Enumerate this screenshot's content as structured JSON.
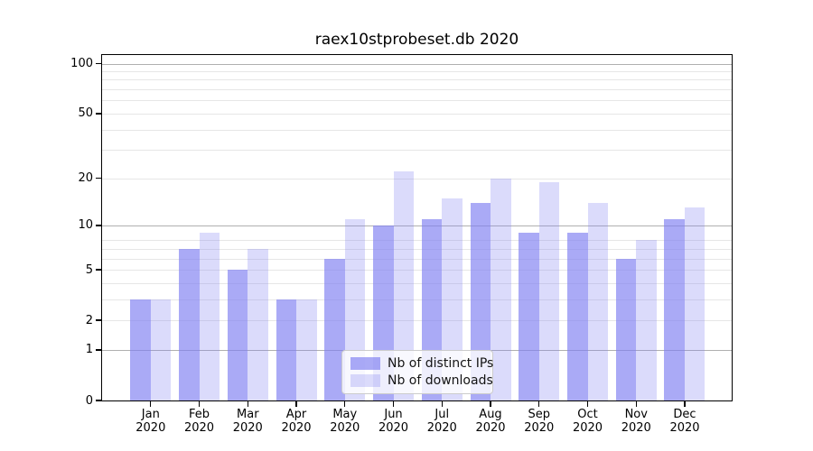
{
  "figure": {
    "background": "#ffffff"
  },
  "chart_data": {
    "type": "bar",
    "title": "raex10stprobeset.db 2020",
    "categories": [
      "Jan",
      "Feb",
      "Mar",
      "Apr",
      "May",
      "Jun",
      "Jul",
      "Aug",
      "Sep",
      "Oct",
      "Nov",
      "Dec"
    ],
    "category_year_line": "2020",
    "series": [
      {
        "name": "Nb of distinct IPs",
        "values": [
          3,
          7,
          5,
          3,
          6,
          10,
          11,
          14,
          9,
          9,
          6,
          11
        ],
        "base_color": "#7e7ef1",
        "alpha": 0.66,
        "color_on_white": "#a8a8f5"
      },
      {
        "name": "Nb of downloads",
        "values": [
          3,
          9,
          7,
          3,
          11,
          22,
          15,
          20,
          19,
          14,
          8,
          13
        ],
        "base_color": "#7e7ef1",
        "alpha": 0.28,
        "color_on_white": "#dadafb"
      }
    ],
    "xlabel": "",
    "ylabel": "",
    "y_ticks": [
      0,
      1,
      2,
      5,
      10,
      20,
      50,
      100
    ],
    "ylim": [
      0,
      113
    ],
    "yscale": "log10(value+1)",
    "grid": {
      "on": true,
      "major_values": [
        1,
        10,
        100
      ],
      "minor_values": [
        2,
        3,
        4,
        5,
        6,
        7,
        8,
        20,
        30,
        40,
        50,
        60,
        70,
        80,
        90
      ],
      "major_color": "#b0b0b0",
      "minor_color": "#e6e6e6"
    },
    "legend_position": "inside-lower-center"
  }
}
